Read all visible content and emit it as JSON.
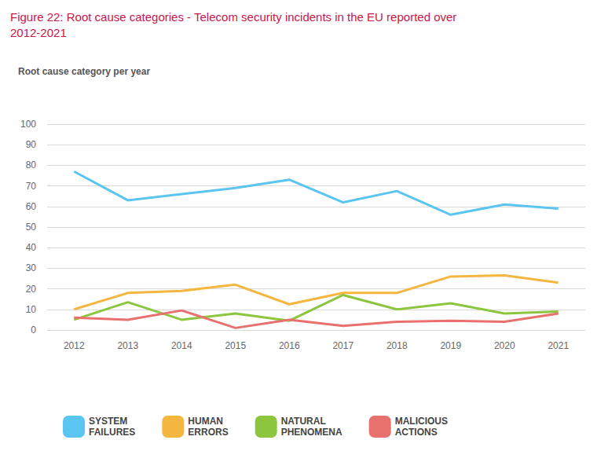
{
  "chart_data": {
    "type": "line",
    "title": "Figure 22: Root cause categories - Telecom security incidents in the EU reported over 2012-2021",
    "subtitle": "Root cause category per year",
    "categories": [
      "2012",
      "2013",
      "2014",
      "2015",
      "2016",
      "2017",
      "2018",
      "2019",
      "2020",
      "2021"
    ],
    "series": [
      {
        "name": "SYSTEM FAILURES",
        "color": "#5bc5f2",
        "values": [
          77,
          63,
          66,
          69,
          73,
          62,
          67.5,
          56,
          61,
          59
        ]
      },
      {
        "name": "HUMAN ERRORS",
        "color": "#f5b63f",
        "values": [
          10,
          18,
          19,
          22,
          12.5,
          18,
          18,
          26,
          26.5,
          23
        ]
      },
      {
        "name": "NATURAL PHENOMENA",
        "color": "#8cc63f",
        "values": [
          5,
          13.5,
          5,
          8,
          4.5,
          17,
          10,
          13,
          8,
          9
        ]
      },
      {
        "name": "MALICIOUS ACTIONS",
        "color": "#e8716d",
        "values": [
          6,
          5,
          9.5,
          1,
          5,
          2,
          4,
          4.5,
          4,
          8
        ]
      }
    ],
    "ylim": [
      0,
      100
    ],
    "yticks": [
      0,
      10,
      20,
      30,
      40,
      50,
      60,
      70,
      80,
      90,
      100
    ],
    "grid": true,
    "legend": "bottom"
  }
}
